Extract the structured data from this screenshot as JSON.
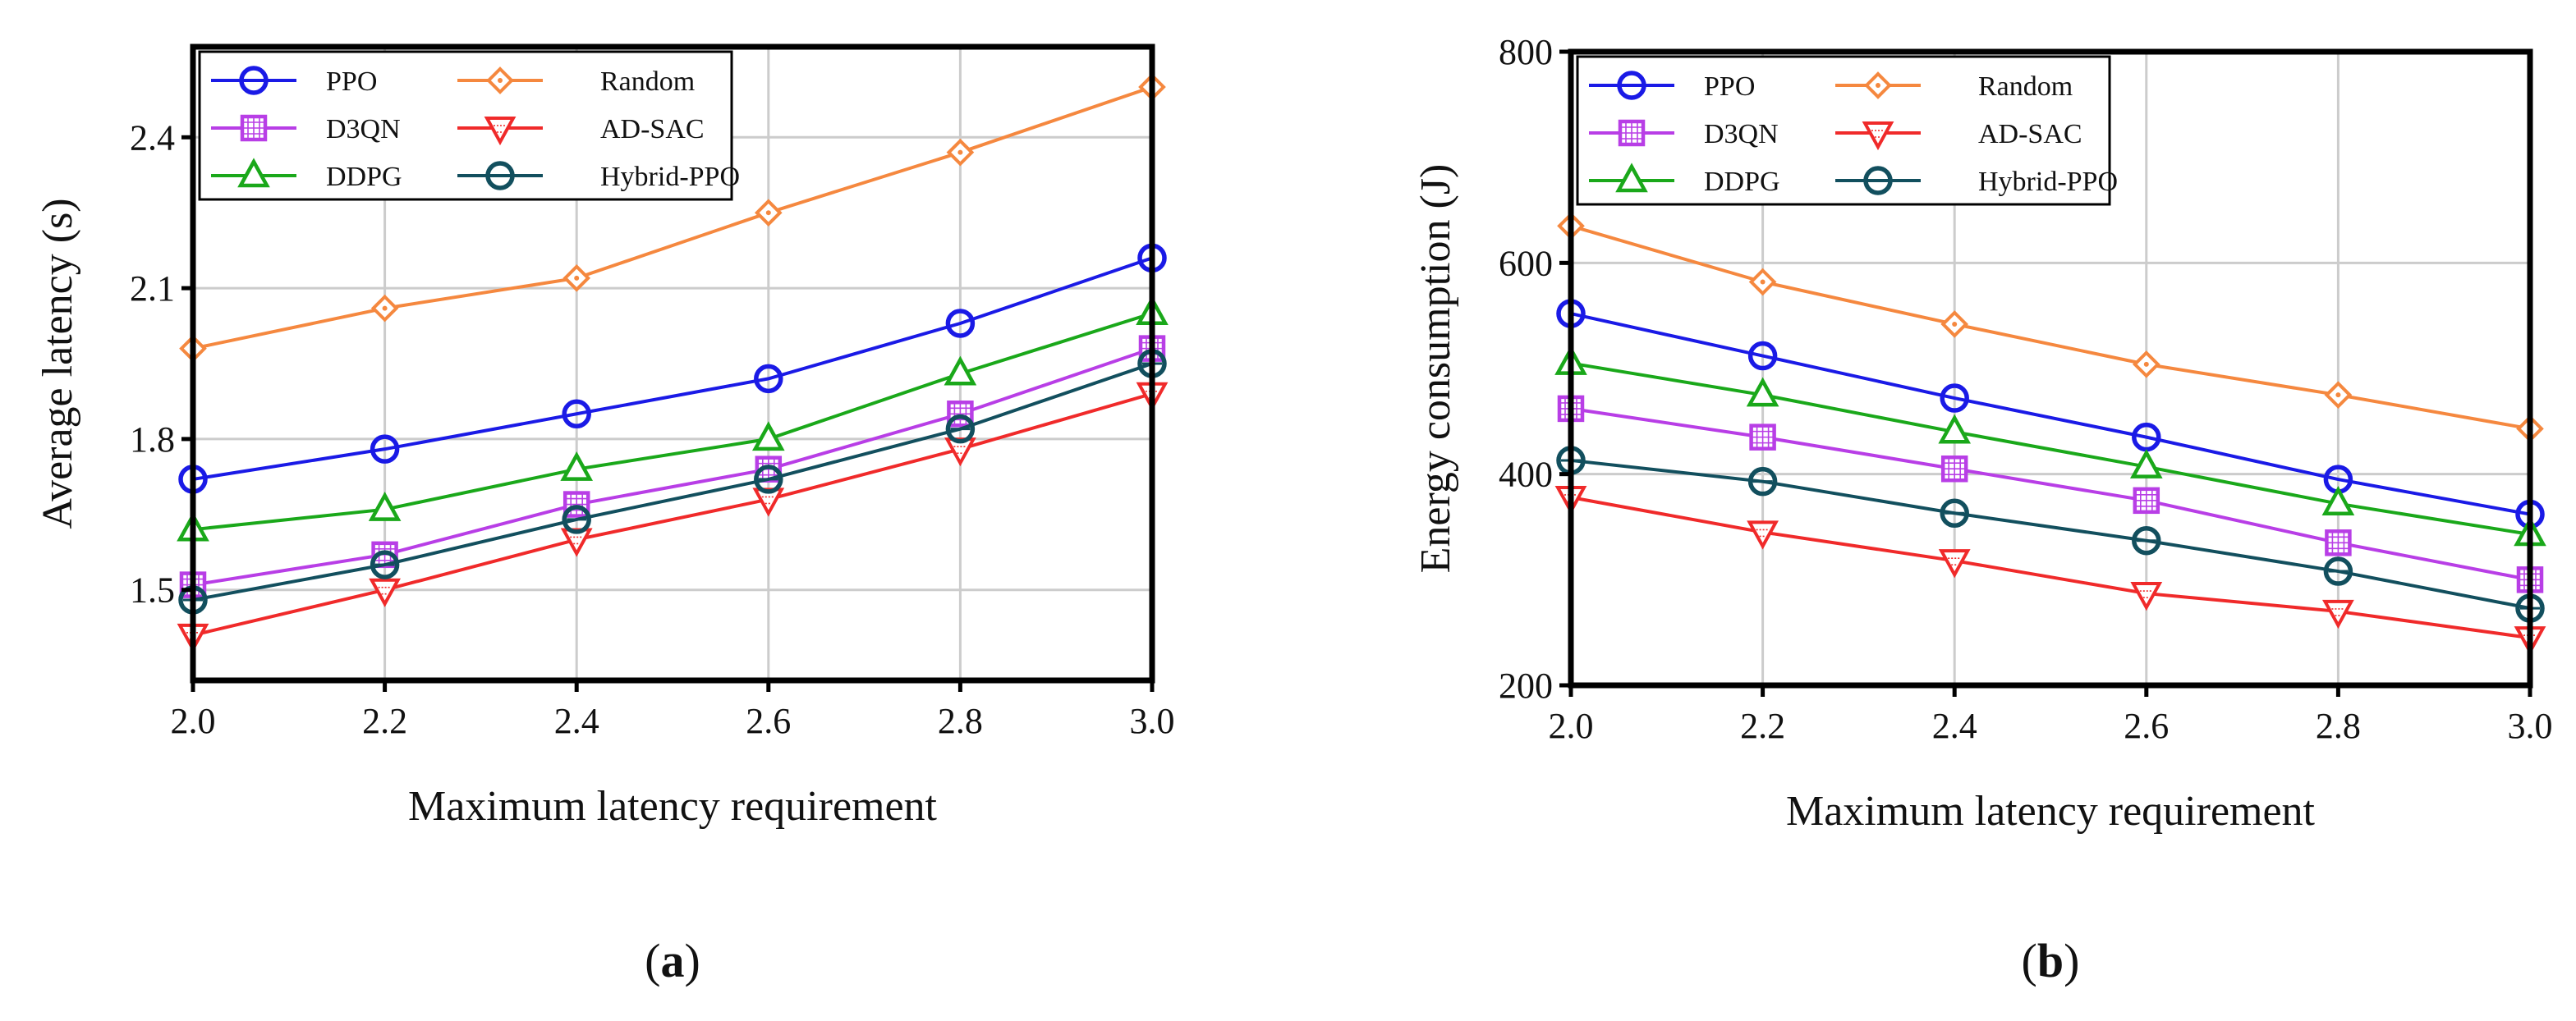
{
  "chart_data": [
    {
      "type": "line",
      "panel_label": "(a)",
      "panel_letter": "a",
      "xlabel": "Maximum latency requirement",
      "ylabel": "Average latency (s)",
      "xlim": [
        2.0,
        3.0
      ],
      "ylim": [
        1.32,
        2.58
      ],
      "xticks": [
        2.0,
        2.2,
        2.4,
        2.6,
        2.8,
        3.0
      ],
      "xtick_labels": [
        "2.0",
        "2.2",
        "2.4",
        "2.6",
        "2.8",
        "3.0"
      ],
      "yticks": [
        1.5,
        1.8,
        2.1,
        2.4
      ],
      "ytick_labels": [
        "1.5",
        "1.8",
        "2.1",
        "2.4"
      ],
      "grid": true,
      "legend_position": "top-left",
      "x": [
        2.0,
        2.2,
        2.4,
        2.6,
        2.8,
        3.0
      ],
      "series": [
        {
          "name": "PPO",
          "values": [
            1.72,
            1.78,
            1.85,
            1.92,
            2.03,
            2.16
          ]
        },
        {
          "name": "D3QN",
          "values": [
            1.51,
            1.57,
            1.67,
            1.74,
            1.85,
            1.98
          ]
        },
        {
          "name": "DDPG",
          "values": [
            1.62,
            1.66,
            1.74,
            1.8,
            1.93,
            2.05
          ]
        },
        {
          "name": "Random",
          "values": [
            1.98,
            2.06,
            2.12,
            2.25,
            2.37,
            2.5
          ]
        },
        {
          "name": "AD-SAC",
          "values": [
            1.41,
            1.5,
            1.6,
            1.68,
            1.78,
            1.89
          ]
        },
        {
          "name": "Hybrid-PPO",
          "values": [
            1.48,
            1.55,
            1.64,
            1.72,
            1.82,
            1.95
          ]
        }
      ]
    },
    {
      "type": "line",
      "panel_label": "(b)",
      "panel_letter": "b",
      "xlabel": "Maximum latency requirement",
      "ylabel": "Energy consumption (J)",
      "xlim": [
        2.0,
        3.0
      ],
      "ylim": [
        200,
        800
      ],
      "xticks": [
        2.0,
        2.2,
        2.4,
        2.6,
        2.8,
        3.0
      ],
      "xtick_labels": [
        "2.0",
        "2.2",
        "2.4",
        "2.6",
        "2.8",
        "3.0"
      ],
      "yticks": [
        200,
        400,
        600,
        800
      ],
      "ytick_labels": [
        "200",
        "400",
        "600",
        "800"
      ],
      "grid": true,
      "legend_position": "top-left",
      "x": [
        2.0,
        2.2,
        2.4,
        2.6,
        2.8,
        3.0
      ],
      "series": [
        {
          "name": "PPO",
          "values": [
            552,
            512,
            472,
            435,
            395,
            362
          ]
        },
        {
          "name": "D3QN",
          "values": [
            462,
            435,
            405,
            375,
            335,
            300
          ]
        },
        {
          "name": "DDPG",
          "values": [
            505,
            475,
            440,
            407,
            372,
            343
          ]
        },
        {
          "name": "Random",
          "values": [
            635,
            582,
            542,
            504,
            475,
            443
          ]
        },
        {
          "name": "AD-SAC",
          "values": [
            378,
            345,
            318,
            287,
            270,
            245
          ]
        },
        {
          "name": "Hybrid-PPO",
          "values": [
            413,
            393,
            363,
            337,
            308,
            273
          ]
        }
      ]
    }
  ],
  "series_styles": [
    {
      "name": "PPO",
      "color": "#1a1ae6",
      "marker": "circle"
    },
    {
      "name": "D3QN",
      "color": "#b83ee6",
      "marker": "square-hatched"
    },
    {
      "name": "DDPG",
      "color": "#1aa81a",
      "marker": "triangle-up"
    },
    {
      "name": "Random",
      "color": "#f5883f",
      "marker": "diamond"
    },
    {
      "name": "AD-SAC",
      "color": "#f02a2a",
      "marker": "triangle-down"
    },
    {
      "name": "Hybrid-PPO",
      "color": "#124f5e",
      "marker": "circle-dash"
    }
  ]
}
